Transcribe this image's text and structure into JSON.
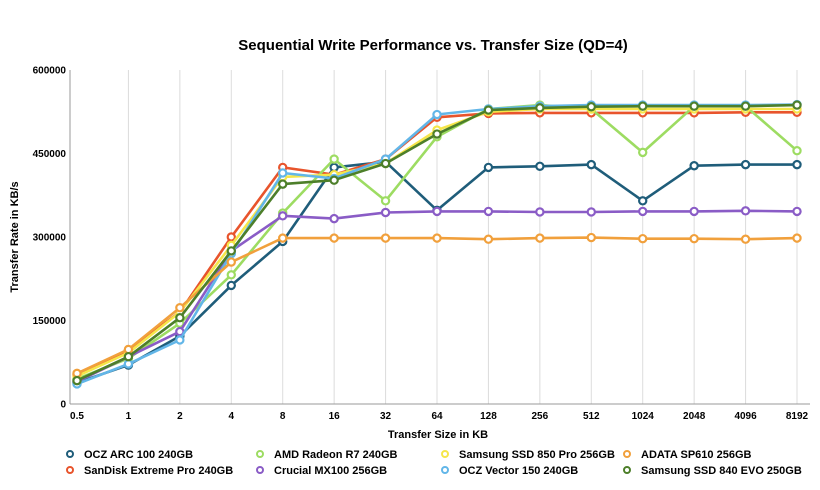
{
  "chart_data": {
    "type": "line",
    "title": "Sequential Write Performance vs. Transfer Size (QD=4)",
    "xlabel": "Transfer Size in KB",
    "ylabel": "Transfer Rate in KB/s",
    "categories": [
      "0.5",
      "1",
      "2",
      "4",
      "8",
      "16",
      "32",
      "64",
      "128",
      "256",
      "512",
      "1024",
      "2048",
      "4096",
      "8192"
    ],
    "ylim": [
      0,
      600000
    ],
    "yticks": [
      0,
      150000,
      300000,
      450000,
      600000
    ],
    "ytick_labels": [
      "0",
      "150000",
      "300000",
      "450000",
      "600000"
    ],
    "grid": "vertical",
    "legend_position": "bottom",
    "series": [
      {
        "name": "OCZ ARC 100 240GB",
        "color": "#1f5d7a",
        "values": [
          38000,
          70000,
          122000,
          213000,
          292000,
          425000,
          435000,
          348000,
          425000,
          427000,
          430000,
          365000,
          428000,
          430000,
          430000
        ]
      },
      {
        "name": "SanDisk Extreme Pro 240GB",
        "color": "#e8542c",
        "values": [
          52000,
          97000,
          165000,
          300000,
          425000,
          412000,
          440000,
          515000,
          522000,
          523000,
          523000,
          523000,
          523000,
          524000,
          524000
        ]
      },
      {
        "name": "AMD Radeon R7 240GB",
        "color": "#9ddc62",
        "values": [
          45000,
          82000,
          145000,
          232000,
          343000,
          440000,
          365000,
          480000,
          530000,
          537000,
          530000,
          452000,
          535000,
          535000,
          455000
        ]
      },
      {
        "name": "Crucial MX100 256GB",
        "color": "#8a5cc6",
        "values": [
          40000,
          85000,
          130000,
          275000,
          338000,
          333000,
          344000,
          346000,
          346000,
          345000,
          345000,
          346000,
          346000,
          347000,
          346000
        ]
      },
      {
        "name": "Samsung SSD 850 Pro 256GB",
        "color": "#f5e64a",
        "values": [
          50000,
          92000,
          165000,
          285000,
          408000,
          412000,
          432000,
          492000,
          525000,
          530000,
          530000,
          530000,
          530000,
          530000,
          530000
        ]
      },
      {
        "name": "OCZ Vector 150 240GB",
        "color": "#62b6e8",
        "values": [
          36000,
          72000,
          115000,
          270000,
          415000,
          405000,
          440000,
          520000,
          530000,
          535000,
          537000,
          537000,
          537000,
          537000,
          538000
        ]
      },
      {
        "name": "ADATA SP610 256GB",
        "color": "#f1a03c",
        "values": [
          55000,
          98000,
          173000,
          255000,
          298000,
          298000,
          298000,
          298000,
          296000,
          298000,
          299000,
          297000,
          297000,
          296000,
          298000
        ]
      },
      {
        "name": "Samsung SSD 840 EVO 250GB",
        "color": "#4d7f2a",
        "values": [
          42000,
          85000,
          155000,
          275000,
          395000,
          402000,
          432000,
          485000,
          528000,
          532000,
          534000,
          535000,
          535000,
          535000,
          537000
        ]
      }
    ]
  }
}
